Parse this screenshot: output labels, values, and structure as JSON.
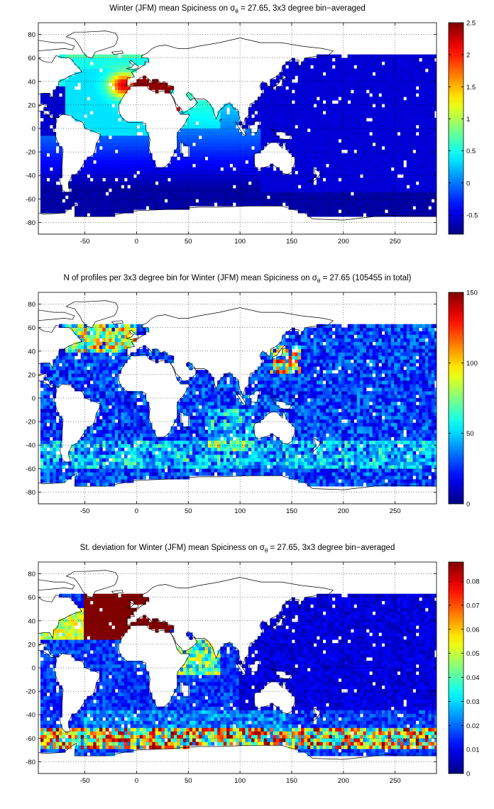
{
  "chart_data": [
    {
      "type": "heatmap",
      "title_prefix": "Winter (JFM) mean Spiciness on ",
      "title_sigma": "σ",
      "title_sub": "θ",
      "title_suffix": " = 27.65, 3x3 degree bin−averaged",
      "xlim": [
        -95,
        290
      ],
      "ylim": [
        -90,
        90
      ],
      "x_ticks": [
        -50,
        0,
        50,
        100,
        150,
        200,
        250
      ],
      "y_ticks": [
        -80,
        -60,
        -40,
        -20,
        0,
        20,
        40,
        60,
        80
      ],
      "colorbar": {
        "min": -0.8,
        "max": 2.5,
        "ticks": [
          -0.5,
          0,
          0.5,
          1,
          1.5,
          2,
          2.5
        ],
        "tick_labels": [
          "-0.5",
          "0",
          "0.5",
          "1",
          "1.5",
          "2",
          "2.5"
        ]
      },
      "field": "spiciness",
      "regions": {
        "north_atlantic_max": 2.5,
        "mediterranean": 2.5,
        "pacific": -0.5,
        "southern_ocean": -0.7
      }
    },
    {
      "type": "heatmap",
      "title_prefix": "N of profiles per 3x3 degree bin for Winter (JFM) mean Spiciness on ",
      "title_sigma": "σ",
      "title_sub": "θ",
      "title_suffix": " = 27.65 (105455 in total)",
      "xlim": [
        -95,
        290
      ],
      "ylim": [
        -90,
        90
      ],
      "x_ticks": [
        -50,
        0,
        50,
        100,
        150,
        200,
        250
      ],
      "y_ticks": [
        -80,
        -60,
        -40,
        -20,
        0,
        20,
        40,
        60,
        80
      ],
      "colorbar": {
        "min": 0,
        "max": 150,
        "ticks": [
          0,
          50,
          100,
          150
        ],
        "tick_labels": [
          "0",
          "50",
          "100",
          "150"
        ]
      },
      "field": "profile_count",
      "total_profiles": 105455
    },
    {
      "type": "heatmap",
      "title_prefix": "St. deviation for Winter (JFM) mean Spiciness on ",
      "title_sigma": "σ",
      "title_sub": "θ",
      "title_suffix": " = 27.65, 3x3 degree bin−averaged",
      "xlim": [
        -95,
        290
      ],
      "ylim": [
        -90,
        90
      ],
      "x_ticks": [
        -50,
        0,
        50,
        100,
        150,
        200,
        250
      ],
      "y_ticks": [
        -80,
        -60,
        -40,
        -20,
        0,
        20,
        40,
        60,
        80
      ],
      "colorbar": {
        "min": 0,
        "max": 0.088,
        "ticks": [
          0,
          0.01,
          0.02,
          0.03,
          0.04,
          0.05,
          0.06,
          0.07,
          0.08
        ],
        "tick_labels": [
          "0",
          "0.01",
          "0.02",
          "0.03",
          "0.04",
          "0.05",
          "0.06",
          "0.07",
          "0.08"
        ]
      },
      "field": "std_dev"
    }
  ],
  "colors": {
    "background": "#ffffff",
    "land": "#ffffff",
    "coast": "#000000",
    "grid": "#000000"
  },
  "colormap": "jet"
}
